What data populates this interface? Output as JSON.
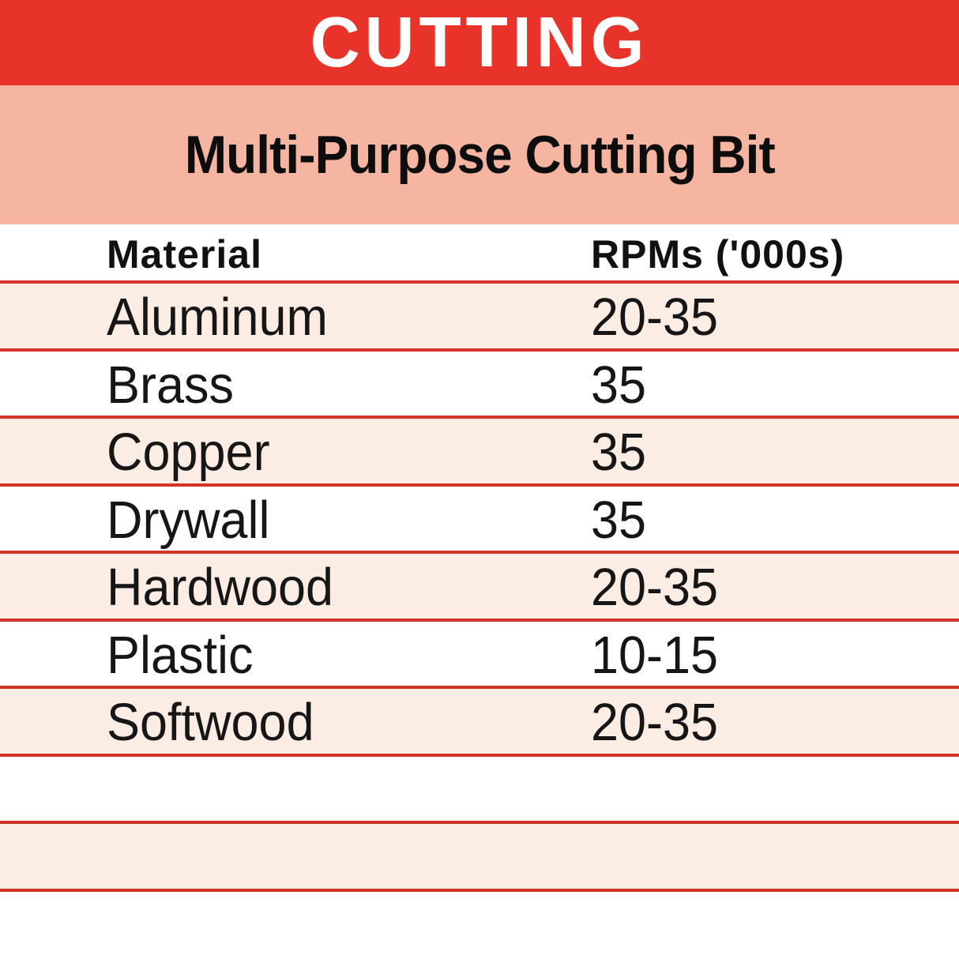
{
  "banner": {
    "title": "CUTTING",
    "background_color": "#E8332A",
    "text_color": "#FFFFFF"
  },
  "subtitle_band": {
    "title": "Multi-Purpose Cutting Bit",
    "background_color": "#F5B5A0",
    "text_color": "#0D0D0D"
  },
  "table": {
    "columns": {
      "material": "Material",
      "rpms": "RPMs ('000s)"
    },
    "rows": [
      {
        "material": "Aluminum",
        "rpms": "20-35"
      },
      {
        "material": "Brass",
        "rpms": "35"
      },
      {
        "material": "Copper",
        "rpms": "35"
      },
      {
        "material": "Drywall",
        "rpms": "35"
      },
      {
        "material": "Hardwood",
        "rpms": "20-35"
      },
      {
        "material": "Plastic",
        "rpms": "10-15"
      },
      {
        "material": "Softwood",
        "rpms": "20-35"
      }
    ],
    "empty_trailing_rows": 2,
    "row_stripe_color": "#FBECE4",
    "separator_color": "#D13327"
  },
  "chart_data": {
    "type": "table",
    "section": "CUTTING",
    "title": "Multi-Purpose Cutting Bit",
    "columns": [
      "Material",
      "RPMs ('000s)"
    ],
    "rows": [
      [
        "Aluminum",
        "20-35"
      ],
      [
        "Brass",
        "35"
      ],
      [
        "Copper",
        "35"
      ],
      [
        "Drywall",
        "35"
      ],
      [
        "Hardwood",
        "20-35"
      ],
      [
        "Plastic",
        "10-15"
      ],
      [
        "Softwood",
        "20-35"
      ]
    ],
    "rpm_ranges_thousands": {
      "Aluminum": [
        20,
        35
      ],
      "Brass": [
        35,
        35
      ],
      "Copper": [
        35,
        35
      ],
      "Drywall": [
        35,
        35
      ],
      "Hardwood": [
        20,
        35
      ],
      "Plastic": [
        10,
        15
      ],
      "Softwood": [
        20,
        35
      ]
    },
    "units": "RPM x 1000",
    "layout": "two-column speed chart with alternating pink/white rows and red rule separators"
  }
}
